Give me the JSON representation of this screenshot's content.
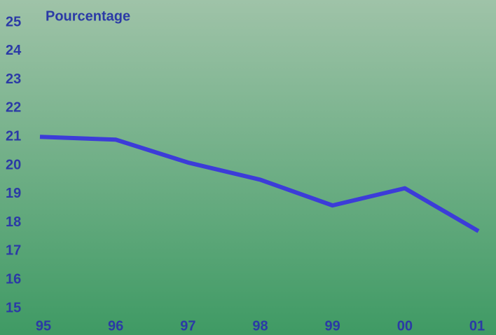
{
  "chart_data": {
    "type": "line",
    "title": "Pourcentage",
    "categories": [
      "95",
      "96",
      "97",
      "98",
      "99",
      "00",
      "01"
    ],
    "values": [
      21.0,
      20.9,
      20.1,
      19.5,
      18.6,
      19.2,
      17.7
    ],
    "color": "#3c3cd8",
    "ylim": [
      15,
      25
    ],
    "yticks": [
      15,
      16,
      17,
      18,
      19,
      20,
      21,
      22,
      23,
      24,
      25
    ],
    "grid": false
  }
}
